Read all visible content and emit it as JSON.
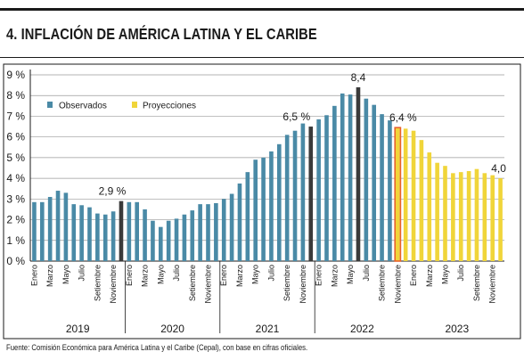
{
  "title": "4. INFLACIÓN DE AMÉRICA LATINA Y EL CARIBE",
  "source": "Fuente: Comisión Económica para América Latina y el Caribe (Cepal), con base en cifras oficiales.",
  "colors": {
    "observed": "#4a8aa6",
    "projection": "#f0d53a",
    "highlight": "#3a3a3a",
    "projection_start": "#e8622a"
  },
  "chart_data": {
    "type": "bar",
    "ylim": [
      0,
      9
    ],
    "yticks": [
      0,
      1,
      2,
      3,
      4,
      5,
      6,
      7,
      8,
      9
    ],
    "ytick_labels": [
      "0 %",
      "1 %",
      "2 %",
      "3 %",
      "4 %",
      "5 %",
      "6 %",
      "7 %",
      "8 %",
      "9 %"
    ],
    "month_labels": [
      "Enero",
      "Marzo",
      "Mayo",
      "Julio",
      "Setiembre",
      "Noviembre"
    ],
    "years": [
      "2019",
      "2020",
      "2021",
      "2022",
      "2023"
    ],
    "legend": [
      "Observados",
      "Proyecciones"
    ],
    "series": [
      {
        "name": "Observados",
        "values": [
          2.85,
          2.85,
          3.1,
          3.4,
          3.3,
          2.75,
          2.7,
          2.6,
          2.3,
          2.25,
          2.4,
          2.9,
          2.85,
          2.85,
          2.5,
          1.95,
          1.65,
          1.95,
          2.05,
          2.25,
          2.45,
          2.75,
          2.75,
          2.8,
          3.0,
          3.25,
          3.75,
          4.3,
          4.9,
          5.0,
          5.3,
          5.65,
          6.1,
          6.3,
          6.65,
          6.5,
          6.85,
          7.05,
          7.5,
          8.1,
          8.05,
          8.4,
          7.85,
          7.55,
          7.1,
          6.8
        ]
      },
      {
        "name": "Proyecciones",
        "values": [
          6.45,
          6.4,
          6.3,
          5.85,
          5.25,
          4.75,
          4.6,
          4.25,
          4.3,
          4.35,
          4.45,
          4.25,
          4.15,
          4.0
        ]
      }
    ],
    "annotations": [
      "2,9 %",
      "6,5 %",
      "8,4",
      "6,4 %",
      "4,0"
    ]
  }
}
